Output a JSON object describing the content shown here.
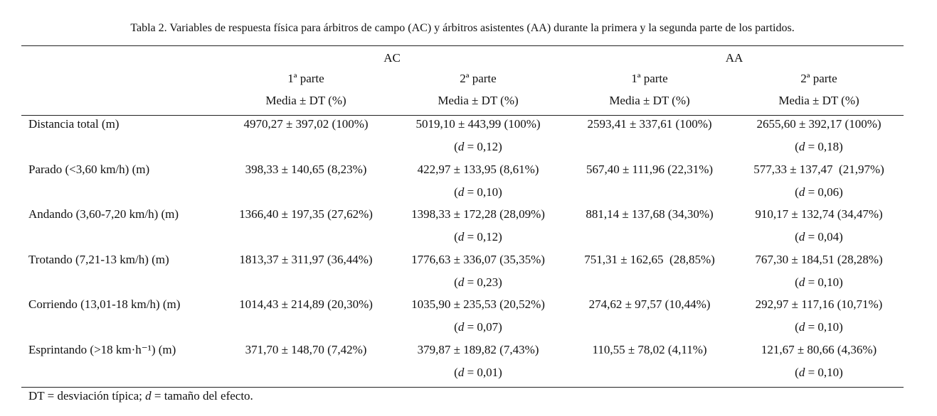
{
  "title": "Tabla 2. Variables de respuesta física para árbitros de campo (AC) y árbitros asistentes (AA) durante la primera y la segunda parte de los partidos.",
  "table": {
    "groups": [
      "AC",
      "AA"
    ],
    "parts": [
      "1ª parte",
      "2ª parte",
      "1ª parte",
      "2ª parte"
    ],
    "stats": [
      "Media ± DT (%)",
      "Media ± DT (%)",
      "Media ± DT (%)",
      "Media ± DT (%)"
    ],
    "rows": [
      {
        "label": "Distancia total (m)",
        "values": [
          "4970,27 ± 397,02 (100%)",
          "5019,10 ± 443,99 (100%)",
          "2593,41 ± 337,61 (100%)",
          "2655,60 ± 392,17 (100%)"
        ],
        "effects": [
          "(d = 0,12)",
          "(d = 0,18)"
        ]
      },
      {
        "label": "Parado (<3,60 km/h) (m)",
        "values": [
          "398,33 ± 140,65 (8,23%)",
          "422,97 ± 133,95 (8,61%)",
          "567,40 ± 111,96 (22,31%)",
          "577,33 ± 137,47  (21,97%)"
        ],
        "effects": [
          "(d = 0,10)",
          "(d = 0,06)"
        ]
      },
      {
        "label": "Andando (3,60-7,20 km/h) (m)",
        "values": [
          "1366,40 ± 197,35 (27,62%)",
          "1398,33 ± 172,28 (28,09%)",
          "881,14 ± 137,68 (34,30%)",
          "910,17 ± 132,74 (34,47%)"
        ],
        "effects": [
          "(d = 0,12)",
          "(d = 0,04)"
        ]
      },
      {
        "label": "Trotando (7,21-13 km/h) (m)",
        "values": [
          "1813,37 ± 311,97 (36,44%)",
          "1776,63 ± 336,07 (35,35%)",
          "751,31 ± 162,65  (28,85%)",
          "767,30 ± 184,51 (28,28%)"
        ],
        "effects": [
          "(d = 0,23)",
          "(d = 0,10)"
        ]
      },
      {
        "label": "Corriendo (13,01-18 km/h) (m)",
        "values": [
          "1014,43 ± 214,89 (20,30%)",
          "1035,90 ± 235,53 (20,52%)",
          "274,62 ± 97,57 (10,44%)",
          "292,97 ± 117,16 (10,71%)"
        ],
        "effects": [
          "(d = 0,07)",
          "(d = 0,10)"
        ]
      },
      {
        "label": "Esprintando (>18 km·h⁻¹) (m)",
        "values": [
          "371,70 ± 148,70 (7,42%)",
          "379,87 ± 189,82 (7,43%)",
          "110,55 ± 78,02 (4,11%)",
          "121,67 ± 80,66 (4,36%)"
        ],
        "effects": [
          "(d = 0,01)",
          "(d = 0,10)"
        ]
      }
    ]
  },
  "footnote": "DT = desviación típica; d = tamaño del efecto."
}
